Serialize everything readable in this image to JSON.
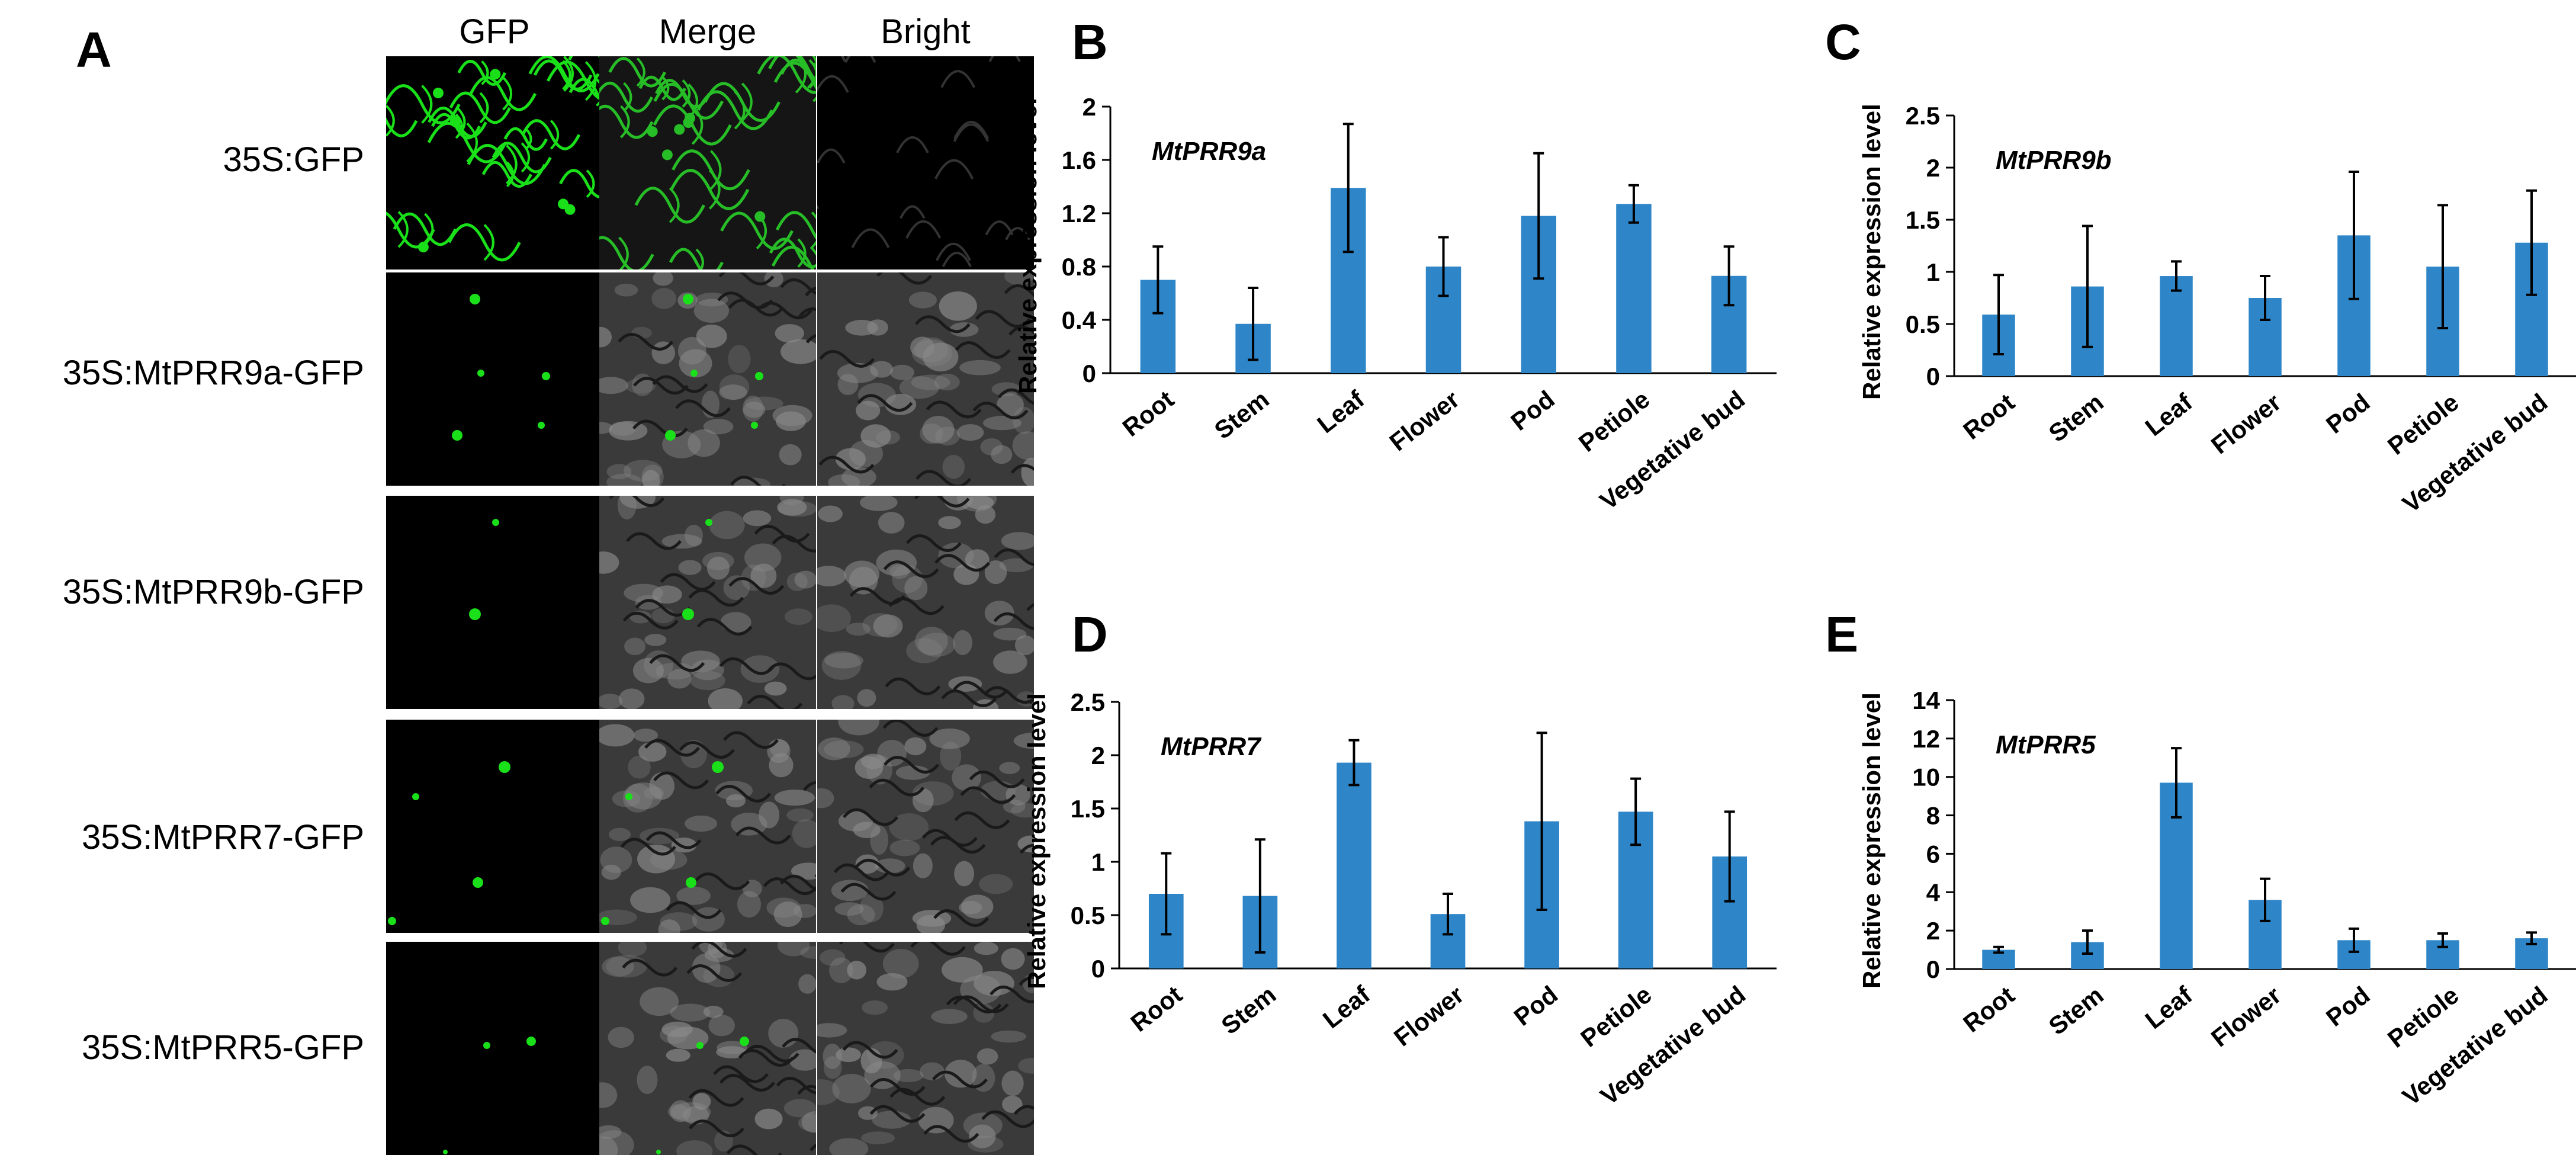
{
  "panel_a": {
    "letter": "A",
    "columns": [
      "GFP",
      "Merge",
      "Bright"
    ],
    "rows": [
      "35S:GFP",
      "35S:MtPRR9a-GFP",
      "35S:MtPRR9b-GFP",
      "35S:MtPRR7-GFP",
      "35S:MtPRR5-GFP"
    ],
    "colors": {
      "gfp": "#19e019",
      "background": "#000000",
      "bright_cells": "#8a8a8a"
    }
  },
  "chart_data": [
    {
      "letter": "B",
      "type": "bar",
      "title": "MtPRR9a",
      "xlabel": "",
      "ylabel": "Relative expression level",
      "categories": [
        "Root",
        "Stem",
        "Leaf",
        "Flower",
        "Pod",
        "Petiole",
        "Vegetative bud"
      ],
      "values": [
        0.7,
        0.37,
        1.39,
        0.8,
        1.18,
        1.27,
        0.73
      ],
      "errors": [
        0.25,
        0.27,
        0.48,
        0.22,
        0.47,
        0.14,
        0.22
      ],
      "ylim": [
        0,
        2
      ],
      "yticks": [
        "0",
        "0.4",
        "0.8",
        "1.2",
        "1.6",
        "2"
      ],
      "ytick_values": [
        0,
        0.4,
        0.8,
        1.2,
        1.6,
        2
      ],
      "color": "#2e86c8"
    },
    {
      "letter": "C",
      "type": "bar",
      "title": "MtPRR9b",
      "xlabel": "",
      "ylabel": "Relative expression level",
      "categories": [
        "Root",
        "Stem",
        "Leaf",
        "Flower",
        "Pod",
        "Petiole",
        "Vegetative bud"
      ],
      "values": [
        0.59,
        0.86,
        0.96,
        0.75,
        1.35,
        1.05,
        1.28
      ],
      "errors": [
        0.38,
        0.58,
        0.14,
        0.21,
        0.61,
        0.59,
        0.5
      ],
      "ylim": [
        0,
        2.5
      ],
      "yticks": [
        "0",
        "0.5",
        "1",
        "1.5",
        "2",
        "2.5"
      ],
      "ytick_values": [
        0,
        0.5,
        1,
        1.5,
        2,
        2.5
      ],
      "color": "#2e86c8"
    },
    {
      "letter": "D",
      "type": "bar",
      "title": "MtPRR7",
      "xlabel": "",
      "ylabel": "Relative expression level",
      "categories": [
        "Root",
        "Stem",
        "Leaf",
        "Flower",
        "Pod",
        "Petiole",
        "Vegetative bud"
      ],
      "values": [
        0.7,
        0.68,
        1.93,
        0.51,
        1.38,
        1.47,
        1.05
      ],
      "errors": [
        0.38,
        0.53,
        0.21,
        0.19,
        0.83,
        0.31,
        0.42
      ],
      "ylim": [
        0,
        2.5
      ],
      "yticks": [
        "0",
        "0.5",
        "1",
        "1.5",
        "2",
        "2.5"
      ],
      "ytick_values": [
        0,
        0.5,
        1,
        1.5,
        2,
        2.5
      ],
      "color": "#2e86c8"
    },
    {
      "letter": "E",
      "type": "bar",
      "title": "MtPRR5",
      "xlabel": "",
      "ylabel": "Relative expression level",
      "categories": [
        "Root",
        "Stem",
        "Leaf",
        "Flower",
        "Pod",
        "Petiole",
        "Vegetative bud"
      ],
      "values": [
        1.0,
        1.4,
        9.7,
        3.6,
        1.5,
        1.5,
        1.6
      ],
      "errors": [
        0.15,
        0.6,
        1.8,
        1.1,
        0.6,
        0.35,
        0.3
      ],
      "ylim": [
        0,
        14
      ],
      "yticks": [
        "0",
        "2",
        "4",
        "6",
        "8",
        "10",
        "12",
        "14"
      ],
      "ytick_values": [
        0,
        2,
        4,
        6,
        8,
        10,
        12,
        14
      ],
      "color": "#2e86c8"
    }
  ]
}
